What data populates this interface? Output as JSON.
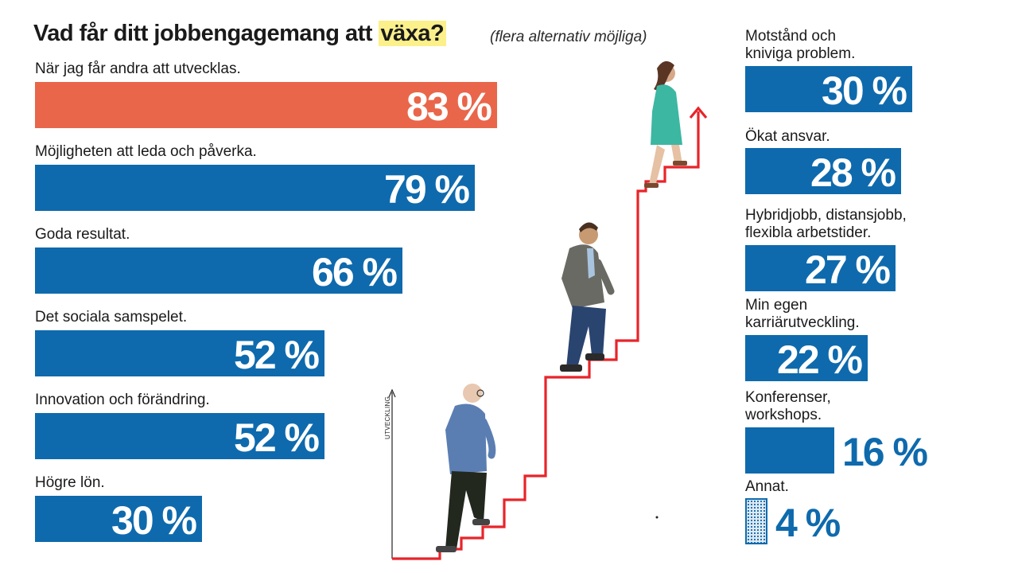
{
  "title": {
    "before": "Vad får ditt jobbengagemang att ",
    "highlight": "växa?",
    "subtitle": "(flera alternativ möjliga)"
  },
  "colors": {
    "blue": "#0e6aad",
    "orange": "#e9664a",
    "highlight": "#fbf08a",
    "stairs": "#e8242a"
  },
  "illustration": {
    "axis_label": "UTVECKLING"
  },
  "chart_data": {
    "type": "bar",
    "orientation": "horizontal",
    "unit": "%",
    "ylim": [
      0,
      100
    ],
    "categories": [
      "När jag får andra att utvecklas.",
      "Möjligheten att leda och påverka.",
      "Goda resultat.",
      "Det sociala samspelet.",
      "Innovation och förändring.",
      "Högre lön.",
      "Motstånd och kniviga problem.",
      "Ökat ansvar.",
      "Hybridjobb, distansjobb, flexibla arbetstider.",
      "Min egen karriärutveckling.",
      "Konferenser, workshops.",
      "Annat."
    ],
    "values": [
      83,
      79,
      66,
      52,
      52,
      30,
      30,
      28,
      27,
      22,
      16,
      4
    ],
    "value_labels": [
      "83 %",
      "79 %",
      "66 %",
      "52 %",
      "52 %",
      "30 %",
      "30 %",
      "28 %",
      "27 %",
      "22 %",
      "16 %",
      "4 %"
    ],
    "highlighted_category": "När jag får andra att utvecklas."
  }
}
